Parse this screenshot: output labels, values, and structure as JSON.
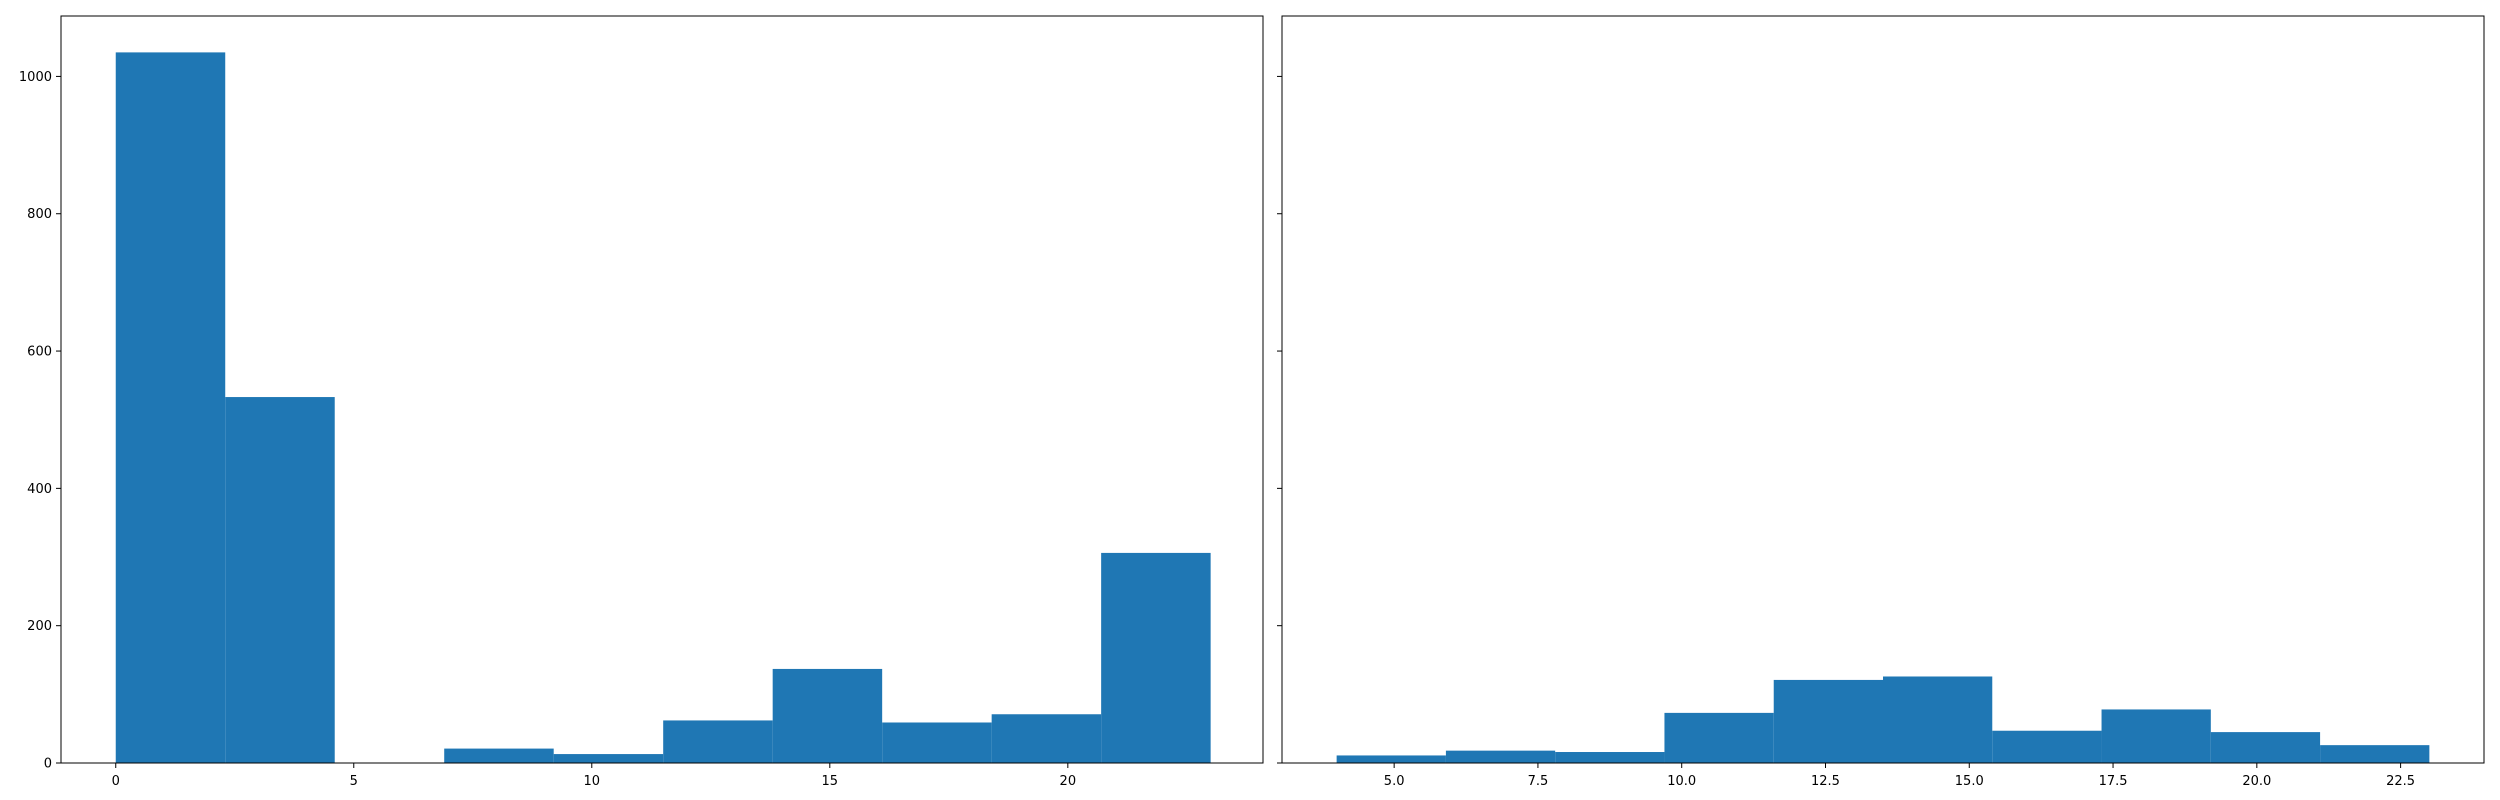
{
  "chart_data": [
    {
      "type": "bar",
      "title": "",
      "xlabel": "",
      "ylabel": "",
      "xlim": [
        -1.15,
        24.1
      ],
      "ylim": [
        0,
        1088
      ],
      "grid": false,
      "x_ticks": [
        0,
        5,
        10,
        15,
        20
      ],
      "x_tick_labels": [
        "0",
        "5",
        "10",
        "15",
        "20"
      ],
      "y_ticks": [
        0,
        200,
        400,
        600,
        800,
        1000
      ],
      "y_tick_labels": [
        "0",
        "200",
        "400",
        "600",
        "800",
        "1000"
      ],
      "bin_edges": [
        0,
        2.3,
        4.6,
        6.9,
        9.2,
        11.5,
        13.8,
        16.1,
        18.4,
        20.7,
        23.0
      ],
      "values": [
        1035,
        533,
        0,
        21,
        13,
        62,
        137,
        59,
        71,
        306
      ],
      "color": "#1f77b4"
    },
    {
      "type": "bar",
      "title": "",
      "xlabel": "",
      "ylabel": "",
      "xlim": [
        3.05,
        23.95
      ],
      "ylim": [
        0,
        1088
      ],
      "grid": false,
      "shared_y": true,
      "x_ticks": [
        5.0,
        7.5,
        10.0,
        12.5,
        15.0,
        17.5,
        20.0,
        22.5
      ],
      "x_tick_labels": [
        "5.0",
        "7.5",
        "10.0",
        "12.5",
        "15.0",
        "17.5",
        "20.0",
        "22.5"
      ],
      "y_ticks": [
        0,
        200,
        400,
        600,
        800,
        1000
      ],
      "y_tick_labels": [
        "",
        "",
        "",
        "",
        "",
        ""
      ],
      "bin_edges": [
        4.0,
        5.9,
        7.8,
        9.7,
        11.6,
        13.5,
        15.4,
        17.3,
        19.2,
        21.1,
        23.0
      ],
      "values": [
        11,
        18,
        16,
        73,
        121,
        126,
        47,
        78,
        45,
        26
      ],
      "color": "#1f77b4"
    }
  ]
}
